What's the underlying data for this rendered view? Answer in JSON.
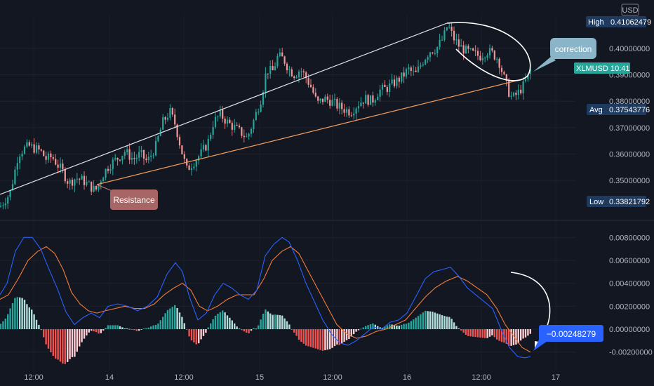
{
  "chart_data": [
    {
      "type": "candlestick",
      "symbol": "XLMUSD",
      "currency": "USD",
      "y_ticks": [
        0.35,
        0.36,
        0.37,
        0.38,
        0.39,
        0.4
      ],
      "y_tick_labels": [
        "0.35000000",
        "0.36000000",
        "0.37000000",
        "0.38000000",
        "0.39000000",
        "0.40000000"
      ],
      "ylim": [
        0.3386,
        0.413
      ],
      "x_tick_labels": [
        "12:00",
        "14",
        "12:00",
        "15",
        "12:00",
        "16",
        "12:00",
        "17"
      ],
      "markers": {
        "high": {
          "label": "High",
          "value": "0.41062479"
        },
        "avg": {
          "label": "Avg",
          "value": "0.37543776"
        },
        "low": {
          "label": "Low",
          "value": "0.33821792"
        },
        "last": {
          "label": "XLMUSD",
          "value": "10:41"
        }
      },
      "annotations": {
        "resistance": "Resistance",
        "correction": "correction"
      },
      "close_path": [
        [
          0,
          0.34
        ],
        [
          8,
          0.343
        ],
        [
          14,
          0.345
        ],
        [
          20,
          0.352
        ],
        [
          26,
          0.36
        ],
        [
          34,
          0.362
        ],
        [
          42,
          0.363
        ],
        [
          50,
          0.362
        ],
        [
          58,
          0.361
        ],
        [
          66,
          0.358
        ],
        [
          74,
          0.359
        ],
        [
          82,
          0.356
        ],
        [
          90,
          0.353
        ],
        [
          98,
          0.349
        ],
        [
          108,
          0.351
        ],
        [
          118,
          0.35
        ],
        [
          128,
          0.348
        ],
        [
          136,
          0.346
        ],
        [
          146,
          0.352
        ],
        [
          156,
          0.356
        ],
        [
          166,
          0.358
        ],
        [
          178,
          0.361
        ],
        [
          190,
          0.358
        ],
        [
          200,
          0.36
        ],
        [
          210,
          0.357
        ],
        [
          222,
          0.363
        ],
        [
          232,
          0.372
        ],
        [
          242,
          0.376
        ],
        [
          250,
          0.371
        ],
        [
          258,
          0.362
        ],
        [
          266,
          0.354
        ],
        [
          276,
          0.357
        ],
        [
          286,
          0.36
        ],
        [
          296,
          0.364
        ],
        [
          304,
          0.372
        ],
        [
          314,
          0.375
        ],
        [
          324,
          0.372
        ],
        [
          334,
          0.37
        ],
        [
          344,
          0.368
        ],
        [
          352,
          0.366
        ],
        [
          362,
          0.373
        ],
        [
          372,
          0.381
        ],
        [
          380,
          0.392
        ],
        [
          388,
          0.391
        ],
        [
          396,
          0.397
        ],
        [
          404,
          0.396
        ],
        [
          412,
          0.392
        ],
        [
          420,
          0.39
        ],
        [
          428,
          0.392
        ],
        [
          436,
          0.389
        ],
        [
          444,
          0.385
        ],
        [
          452,
          0.379
        ],
        [
          462,
          0.381
        ],
        [
          472,
          0.38
        ],
        [
          482,
          0.378
        ],
        [
          490,
          0.377
        ],
        [
          500,
          0.376
        ],
        [
          510,
          0.379
        ],
        [
          520,
          0.381
        ],
        [
          530,
          0.38
        ],
        [
          540,
          0.384
        ],
        [
          552,
          0.385
        ],
        [
          562,
          0.387
        ],
        [
          572,
          0.389
        ],
        [
          582,
          0.392
        ],
        [
          592,
          0.39
        ],
        [
          602,
          0.395
        ],
        [
          612,
          0.399
        ],
        [
          622,
          0.4
        ],
        [
          632,
          0.404
        ],
        [
          638,
          0.409
        ],
        [
          646,
          0.404
        ],
        [
          654,
          0.401
        ],
        [
          664,
          0.399
        ],
        [
          674,
          0.398
        ],
        [
          684,
          0.397
        ],
        [
          694,
          0.399
        ],
        [
          702,
          0.398
        ],
        [
          710,
          0.396
        ],
        [
          718,
          0.389
        ],
        [
          724,
          0.384
        ],
        [
          730,
          0.381
        ],
        [
          738,
          0.383
        ],
        [
          746,
          0.386
        ],
        [
          752,
          0.389
        ],
        [
          756,
          0.392
        ]
      ]
    },
    {
      "type": "macd",
      "y_ticks": [
        -0.002,
        0.0,
        0.002,
        0.004,
        0.006,
        0.008
      ],
      "y_tick_labels": [
        "-0.00200000",
        "0.00000000",
        "0.00200000",
        "0.00400000",
        "0.00600000",
        "0.00800000"
      ],
      "ylim": [
        -0.003,
        0.009
      ],
      "last_value_label": "−0.00248279",
      "macd_line": [
        [
          0,
          0.003
        ],
        [
          10,
          0.004
        ],
        [
          22,
          0.0068
        ],
        [
          34,
          0.008
        ],
        [
          46,
          0.008
        ],
        [
          58,
          0.007
        ],
        [
          70,
          0.0052
        ],
        [
          82,
          0.0035
        ],
        [
          94,
          0.0015
        ],
        [
          106,
          0.0004
        ],
        [
          118,
          0.001
        ],
        [
          130,
          0.0014
        ],
        [
          142,
          0.001
        ],
        [
          154,
          0.002
        ],
        [
          168,
          0.0022
        ],
        [
          182,
          0.002
        ],
        [
          196,
          0.0016
        ],
        [
          210,
          0.002
        ],
        [
          224,
          0.0028
        ],
        [
          238,
          0.0048
        ],
        [
          250,
          0.0058
        ],
        [
          260,
          0.005
        ],
        [
          270,
          0.0028
        ],
        [
          282,
          0.0008
        ],
        [
          294,
          0.0014
        ],
        [
          306,
          0.003
        ],
        [
          318,
          0.004
        ],
        [
          330,
          0.0036
        ],
        [
          342,
          0.003
        ],
        [
          354,
          0.0026
        ],
        [
          366,
          0.0034
        ],
        [
          378,
          0.0064
        ],
        [
          390,
          0.0074
        ],
        [
          402,
          0.008
        ],
        [
          412,
          0.0076
        ],
        [
          424,
          0.006
        ],
        [
          436,
          0.004
        ],
        [
          448,
          0.0024
        ],
        [
          460,
          0.0008
        ],
        [
          472,
          -0.0004
        ],
        [
          484,
          -0.0012
        ],
        [
          496,
          -0.0014
        ],
        [
          508,
          -0.001
        ],
        [
          520,
          -0.0004
        ],
        [
          532,
          0.0002
        ],
        [
          544,
          0.0
        ],
        [
          556,
          0.0006
        ],
        [
          568,
          0.0008
        ],
        [
          580,
          0.0014
        ],
        [
          594,
          0.003
        ],
        [
          606,
          0.0044
        ],
        [
          618,
          0.005
        ],
        [
          630,
          0.0052
        ],
        [
          642,
          0.0054
        ],
        [
          654,
          0.0046
        ],
        [
          666,
          0.0036
        ],
        [
          678,
          0.003
        ],
        [
          690,
          0.0024
        ],
        [
          702,
          0.0018
        ],
        [
          714,
          0.0
        ],
        [
          726,
          -0.0016
        ],
        [
          738,
          -0.0024
        ],
        [
          748,
          -0.0025
        ],
        [
          756,
          -0.0024
        ]
      ],
      "signal_line": [
        [
          0,
          0.0026
        ],
        [
          12,
          0.003
        ],
        [
          26,
          0.0044
        ],
        [
          40,
          0.006
        ],
        [
          54,
          0.0068
        ],
        [
          66,
          0.0072
        ],
        [
          78,
          0.0066
        ],
        [
          90,
          0.0052
        ],
        [
          102,
          0.0032
        ],
        [
          114,
          0.0022
        ],
        [
          126,
          0.0016
        ],
        [
          138,
          0.0014
        ],
        [
          150,
          0.0016
        ],
        [
          164,
          0.0018
        ],
        [
          178,
          0.002
        ],
        [
          192,
          0.0018
        ],
        [
          206,
          0.0018
        ],
        [
          220,
          0.0022
        ],
        [
          234,
          0.003
        ],
        [
          248,
          0.0036
        ],
        [
          260,
          0.004
        ],
        [
          272,
          0.0034
        ],
        [
          284,
          0.002
        ],
        [
          296,
          0.0016
        ],
        [
          310,
          0.002
        ],
        [
          324,
          0.0026
        ],
        [
          338,
          0.003
        ],
        [
          350,
          0.003
        ],
        [
          362,
          0.003
        ],
        [
          376,
          0.0044
        ],
        [
          388,
          0.006
        ],
        [
          402,
          0.0068
        ],
        [
          414,
          0.0072
        ],
        [
          426,
          0.0066
        ],
        [
          438,
          0.0052
        ],
        [
          452,
          0.0036
        ],
        [
          466,
          0.002
        ],
        [
          480,
          0.0004
        ],
        [
          494,
          -0.0004
        ],
        [
          508,
          -0.0008
        ],
        [
          522,
          -0.0006
        ],
        [
          536,
          -0.0002
        ],
        [
          550,
          0.0
        ],
        [
          564,
          0.0004
        ],
        [
          578,
          0.0008
        ],
        [
          592,
          0.0018
        ],
        [
          606,
          0.0028
        ],
        [
          620,
          0.0036
        ],
        [
          636,
          0.0042
        ],
        [
          652,
          0.0046
        ],
        [
          666,
          0.0042
        ],
        [
          680,
          0.0036
        ],
        [
          694,
          0.003
        ],
        [
          708,
          0.0018
        ],
        [
          720,
          0.0004
        ],
        [
          732,
          -0.0006
        ],
        [
          744,
          -0.0016
        ],
        [
          756,
          -0.002
        ]
      ]
    }
  ]
}
